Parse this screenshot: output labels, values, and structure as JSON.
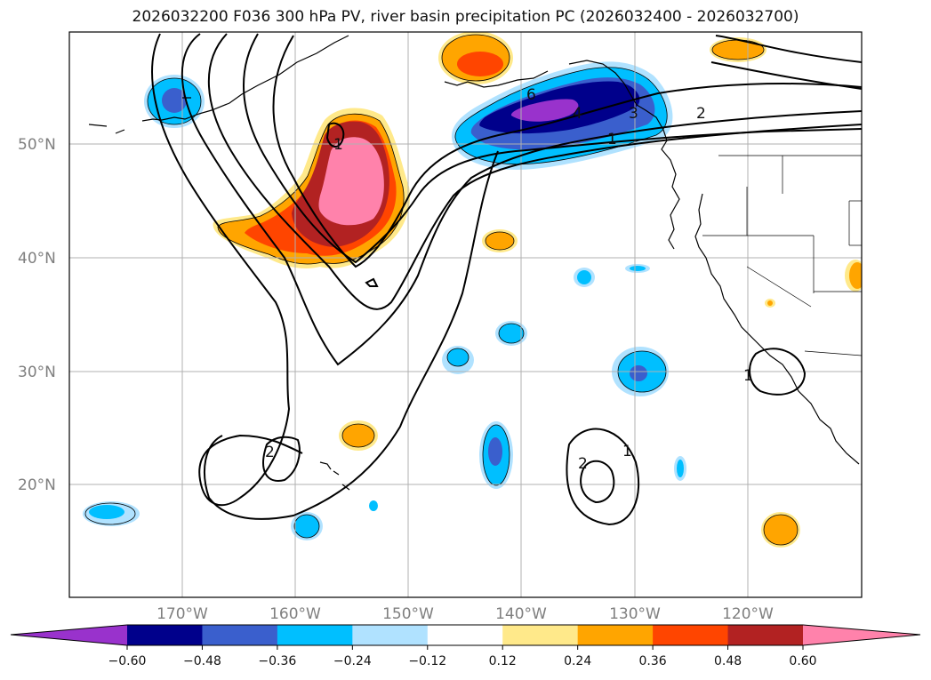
{
  "title": "2026032200 F036 300 hPa PV, river basin precipitation PC (2026032400 - 2026032700)",
  "axes": {
    "lat_labels": [
      "50°N",
      "40°N",
      "30°N",
      "20°N"
    ],
    "lon_labels": [
      "170°W",
      "160°W",
      "150°W",
      "140°W",
      "130°W",
      "120°W"
    ]
  },
  "colorbar": {
    "tick_labels": [
      "−0.60",
      "−0.48",
      "−0.36",
      "−0.24",
      "−0.12",
      "0.12",
      "0.24",
      "0.36",
      "0.48",
      "0.60"
    ],
    "colors": [
      "#9932cc",
      "#00008b",
      "#3a5fcd",
      "#00bfff",
      "#b0e2ff",
      "#ffffff",
      "#ffe98a",
      "#ffa500",
      "#ff4500",
      "#b22222",
      "#ff82ab"
    ],
    "under_color": "#9932cc",
    "over_color": "#ff82ab"
  },
  "contour_labels": [
    "1",
    "2",
    "3",
    "4",
    "6",
    "1",
    "2",
    "2",
    "1",
    "1"
  ]
}
